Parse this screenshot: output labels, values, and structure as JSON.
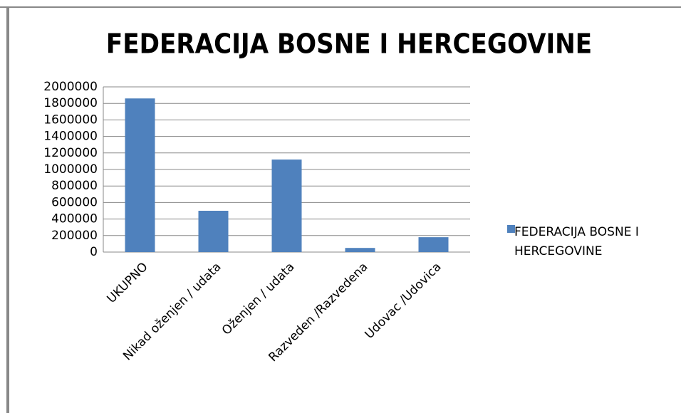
{
  "chart_data": {
    "type": "bar",
    "title": "FEDERACIJA BOSNE I HERCEGOVINE",
    "categories": [
      "UKUPNO",
      "Nikad oženjen / udata",
      "Oženjen / udata",
      "Razveden /Razvedena",
      "Udovac /Udovica"
    ],
    "series": [
      {
        "name": "FEDERACIJA BOSNE I HERCEGOVINE",
        "color": "#4f81bd",
        "values": [
          1860000,
          500000,
          1120000,
          50000,
          180000
        ]
      }
    ],
    "ylim": [
      0,
      2000000
    ],
    "yticks": [
      0,
      200000,
      400000,
      600000,
      800000,
      1000000,
      1200000,
      1400000,
      1600000,
      1800000,
      2000000
    ],
    "grid": true,
    "legend": "right"
  }
}
